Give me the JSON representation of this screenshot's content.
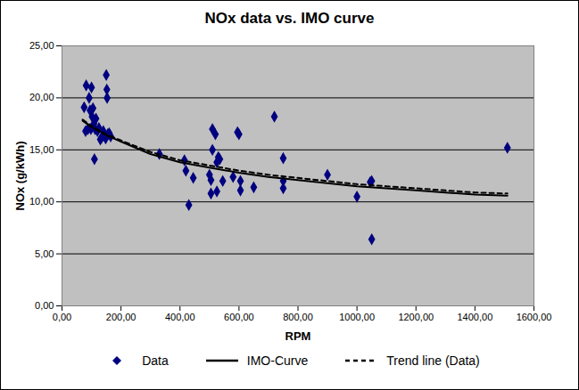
{
  "chart_data": {
    "type": "scatter",
    "title": "NOx data vs. IMO curve",
    "x_label": "RPM",
    "y_label": "NOx (g/kWh)",
    "xlim": [
      0,
      1600
    ],
    "ylim": [
      0,
      25
    ],
    "xticks": [
      {
        "value": 0,
        "label": "0,00"
      },
      {
        "value": 200,
        "label": "200,00"
      },
      {
        "value": 400,
        "label": "400,00"
      },
      {
        "value": 600,
        "label": "600,00"
      },
      {
        "value": 800,
        "label": "800,00"
      },
      {
        "value": 1000,
        "label": "1000,00"
      },
      {
        "value": 1200,
        "label": "1200,00"
      },
      {
        "value": 1400,
        "label": "1400,00"
      },
      {
        "value": 1600,
        "label": "1600,00"
      }
    ],
    "yticks": [
      {
        "value": 0,
        "label": "0,00"
      },
      {
        "value": 5,
        "label": "5,00"
      },
      {
        "value": 10,
        "label": "10,00"
      },
      {
        "value": 15,
        "label": "15,00"
      },
      {
        "value": 20,
        "label": "20,00"
      },
      {
        "value": 25,
        "label": "25,00"
      }
    ],
    "grid": true,
    "legend": "bottom",
    "series": [
      {
        "name": "Data",
        "type": "scatter",
        "color": "#000080",
        "marker": "diamond",
        "x": [
          75,
          80,
          82,
          88,
          92,
          95,
          98,
          100,
          102,
          105,
          108,
          110,
          112,
          115,
          120,
          125,
          130,
          135,
          140,
          145,
          148,
          150,
          152,
          153,
          155,
          160,
          165,
          330,
          415,
          420,
          430,
          445,
          500,
          505,
          505,
          510,
          510,
          520,
          525,
          525,
          530,
          535,
          545,
          580,
          595,
          600,
          605,
          605,
          650,
          720,
          750,
          750,
          750,
          900,
          1000,
          1045,
          1050,
          1050,
          1510
        ],
        "values": [
          19.1,
          16.8,
          21.2,
          17.0,
          20.0,
          18.8,
          17.0,
          21.0,
          18.2,
          19.0,
          17.5,
          14.1,
          17.0,
          18.0,
          16.8,
          17.1,
          16.0,
          16.2,
          16.8,
          16.3,
          16.1,
          22.2,
          20.8,
          20.0,
          16.5,
          16.6,
          16.3,
          14.6,
          14.0,
          13.0,
          9.7,
          12.3,
          12.6,
          12.1,
          10.8,
          15.0,
          17.0,
          16.5,
          13.8,
          11.0,
          14.3,
          14.1,
          12.0,
          12.4,
          16.7,
          16.5,
          11.1,
          12.0,
          11.4,
          18.2,
          14.2,
          12.0,
          11.3,
          12.6,
          10.5,
          11.9,
          12.0,
          6.4,
          15.2
        ]
      },
      {
        "name": "IMO-Curve",
        "type": "line",
        "color": "#000000",
        "line_style": "solid",
        "x": [
          70,
          100,
          150,
          200,
          300,
          400,
          500,
          600,
          700,
          800,
          900,
          1000,
          1100,
          1200,
          1300,
          1400,
          1510
        ],
        "values": [
          17.8,
          17.2,
          16.4,
          15.8,
          14.6,
          13.8,
          13.3,
          12.8,
          12.4,
          12.1,
          11.8,
          11.5,
          11.3,
          11.1,
          10.9,
          10.7,
          10.6
        ]
      },
      {
        "name": "Trend line (Data)",
        "type": "line",
        "color": "#000000",
        "line_style": "dashed",
        "x": [
          70,
          100,
          150,
          200,
          300,
          400,
          500,
          600,
          700,
          800,
          900,
          1000,
          1100,
          1200,
          1300,
          1400,
          1510
        ],
        "values": [
          17.9,
          17.3,
          16.5,
          15.9,
          14.8,
          14.0,
          13.5,
          13.0,
          12.6,
          12.3,
          12.0,
          11.7,
          11.5,
          11.3,
          11.1,
          10.9,
          10.8
        ]
      }
    ]
  }
}
